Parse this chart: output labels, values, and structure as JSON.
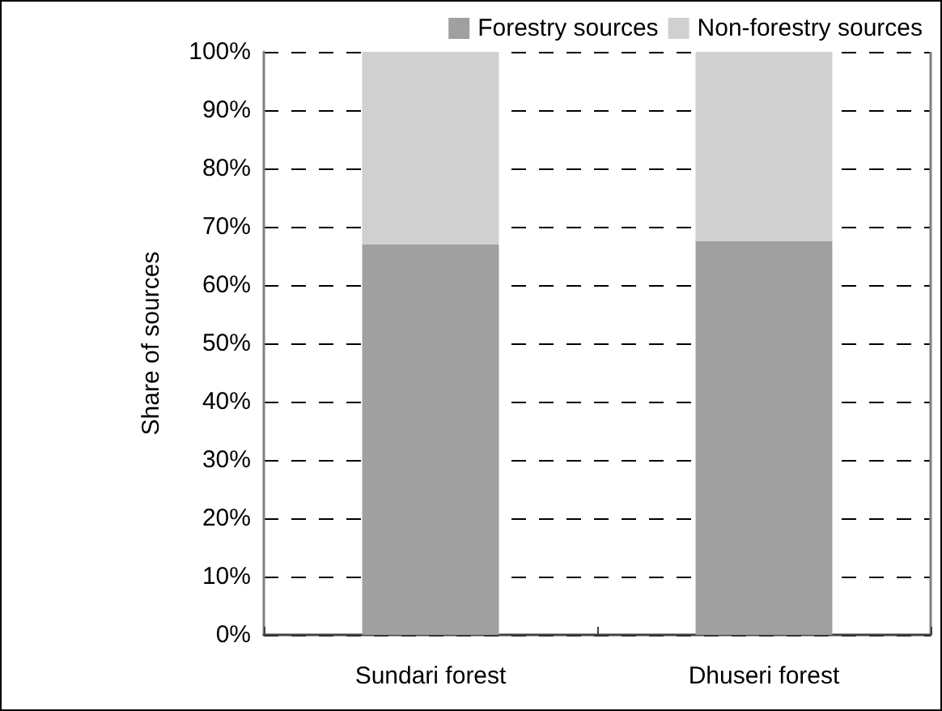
{
  "chart_data": {
    "type": "bar",
    "stacked": true,
    "ylabel": "Share of sources",
    "categories": [
      "Sundari forest",
      "Dhuseri forest"
    ],
    "series": [
      {
        "name": "Forestry sources",
        "color": "#a0a0a0",
        "values": [
          67,
          67.5
        ]
      },
      {
        "name": "Non-forestry sources",
        "color": "#d0d0d0",
        "values": [
          33,
          32.5
        ]
      }
    ],
    "ylim": [
      0,
      100
    ],
    "yticks": [
      {
        "value": 0,
        "label": "0%"
      },
      {
        "value": 10,
        "label": "10%"
      },
      {
        "value": 20,
        "label": "20%"
      },
      {
        "value": 30,
        "label": "30%"
      },
      {
        "value": 40,
        "label": "40%"
      },
      {
        "value": 50,
        "label": "50%"
      },
      {
        "value": 60,
        "label": "60%"
      },
      {
        "value": 70,
        "label": "70%"
      },
      {
        "value": 80,
        "label": "80%"
      },
      {
        "value": 90,
        "label": "90%"
      },
      {
        "value": 100,
        "label": "100%"
      }
    ],
    "grid": "y",
    "legend": "top right"
  }
}
